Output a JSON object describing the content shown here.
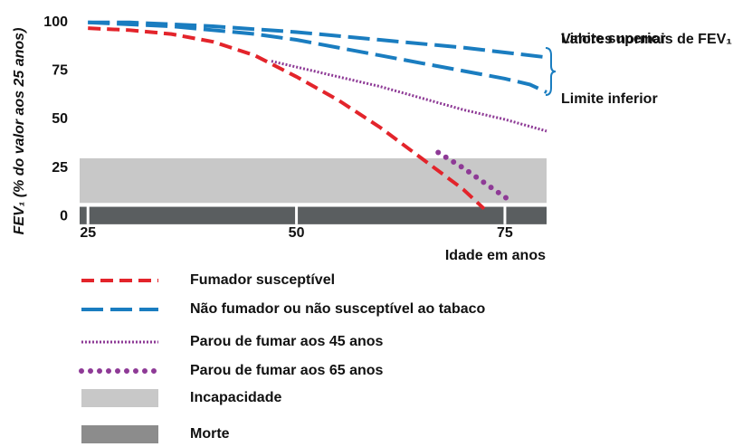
{
  "chart_data": {
    "type": "line",
    "ylabel": "FEV₁ (% do valor aos 25 anos)",
    "xlabel": "Idade em anos",
    "xlim": [
      24,
      80
    ],
    "xticks": [
      25,
      50,
      75
    ],
    "ylim": [
      -5,
      105
    ],
    "yticks": [
      0,
      25,
      50,
      75,
      100
    ],
    "annotation": "Valores normais de FEV₁",
    "bands": [
      {
        "name": "Incapacidade",
        "color": "#c8c8c8",
        "range": [
          7,
          30
        ]
      },
      {
        "name": "Morte",
        "color": "#5a5e60",
        "range": [
          -4,
          5
        ]
      }
    ],
    "series": [
      {
        "name": "Fumador susceptível",
        "color": "#e3242b",
        "style": "dashed",
        "x": [
          25,
          30,
          35,
          40,
          45,
          50,
          55,
          60,
          65,
          70,
          72.5
        ],
        "values": [
          97,
          96,
          94,
          90,
          83,
          72,
          60,
          46,
          30,
          14,
          4
        ]
      },
      {
        "name": "Não fumador ou não susceptível ao tabaco",
        "color": "#1a7dc0",
        "style": "longdash",
        "lines": [
          {
            "label": "Limite superior",
            "x": [
              25,
              30,
              40,
              50,
              60,
              70,
              80
            ],
            "values": [
              100,
              100,
              98,
              95,
              91,
              87,
              82
            ]
          },
          {
            "label": "Limite inferior",
            "x": [
              25,
              35,
              45,
              50,
              55,
              60,
              65,
              70,
              75,
              78,
              80
            ],
            "values": [
              100,
              98,
              94,
              91,
              87,
              83,
              79,
              75,
              71,
              68,
              64
            ]
          }
        ]
      },
      {
        "name": "Parou de fumar aos 45 anos",
        "color": "#8e3a96",
        "style": "dotted",
        "x": [
          47,
          50,
          55,
          60,
          65,
          70,
          75,
          80
        ],
        "values": [
          80,
          77,
          72,
          67,
          61,
          55,
          50,
          44
        ]
      },
      {
        "name": "Parou de fumar aos 65 anos",
        "color": "#8e3a96",
        "style": "dots",
        "x": [
          67,
          70,
          73,
          76
        ],
        "values": [
          33,
          25,
          16,
          7
        ]
      }
    ]
  }
}
